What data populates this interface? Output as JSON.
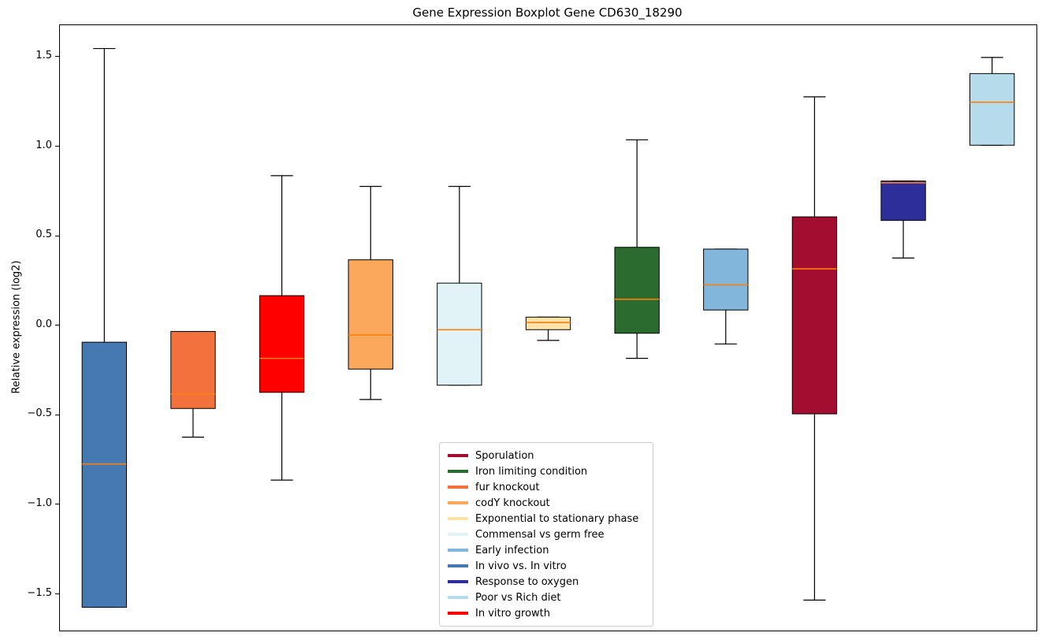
{
  "chart_data": {
    "type": "boxplot",
    "title": "Gene Expression Boxplot Gene CD630_18290",
    "ylabel": "Relative expression (log2)",
    "ylim": [
      -1.7,
      1.68
    ],
    "yticks": [
      {
        "value": 1.5,
        "label": "1.5"
      },
      {
        "value": 1.0,
        "label": "1.0"
      },
      {
        "value": 0.5,
        "label": "0.5"
      },
      {
        "value": 0.0,
        "label": "0.0"
      },
      {
        "value": -0.5,
        "label": "−0.5"
      },
      {
        "value": -1.0,
        "label": "−1.0"
      },
      {
        "value": -1.5,
        "label": "−1.5"
      }
    ],
    "median_color": "#ff7f0e",
    "box_edge_color": "#000000",
    "whisker_color": "#000000",
    "series": [
      {
        "name": "In vivo vs. In vitro",
        "color": "#4679B2",
        "low": -1.57,
        "q1": -1.57,
        "median": -0.77,
        "q3": -0.09,
        "high": 1.55
      },
      {
        "name": "fur knockout",
        "color": "#F2713C",
        "low": -0.62,
        "q1": -0.46,
        "median": -0.38,
        "q3": -0.03,
        "high": -0.03
      },
      {
        "name": "In vitro growth",
        "color": "#FF0000",
        "low": -0.86,
        "q1": -0.37,
        "median": -0.18,
        "q3": 0.17,
        "high": 0.84
      },
      {
        "name": "codY knockout",
        "color": "#FBA85C",
        "low": -0.41,
        "q1": -0.24,
        "median": -0.05,
        "q3": 0.37,
        "high": 0.78
      },
      {
        "name": "Commensal vs germ free",
        "color": "#E2F3F8",
        "low": -0.33,
        "q1": -0.33,
        "median": -0.02,
        "q3": 0.24,
        "high": 0.78
      },
      {
        "name": "Exponential to stationary phase",
        "color": "#FFE3A9",
        "low": -0.08,
        "q1": -0.02,
        "median": 0.02,
        "q3": 0.05,
        "high": 0.05
      },
      {
        "name": "Iron limiting condition",
        "color": "#2C6B2F",
        "low": -0.18,
        "q1": -0.04,
        "median": 0.15,
        "q3": 0.44,
        "high": 1.04
      },
      {
        "name": "Early infection",
        "color": "#82B6DB",
        "low": -0.1,
        "q1": 0.09,
        "median": 0.23,
        "q3": 0.43,
        "high": 0.43
      },
      {
        "name": "Sporulation",
        "color": "#A30D2F",
        "low": -1.53,
        "q1": -0.49,
        "median": 0.32,
        "q3": 0.61,
        "high": 1.28
      },
      {
        "name": "Response to oxygen",
        "color": "#2D2E9A",
        "low": 0.38,
        "q1": 0.59,
        "median": 0.8,
        "q3": 0.81,
        "high": 0.81
      },
      {
        "name": "Poor vs Rich diet",
        "color": "#B6DCEB",
        "low": 1.01,
        "q1": 1.01,
        "median": 1.25,
        "q3": 1.41,
        "high": 1.5
      }
    ],
    "legend": {
      "items": [
        {
          "label": "Sporulation",
          "color": "#A30D2F"
        },
        {
          "label": "Iron limiting condition",
          "color": "#2C6B2F"
        },
        {
          "label": "fur knockout",
          "color": "#F2713C"
        },
        {
          "label": "codY knockout",
          "color": "#FBA85C"
        },
        {
          "label": "Exponential to stationary phase",
          "color": "#FFE3A9"
        },
        {
          "label": "Commensal vs germ free",
          "color": "#E2F3F8"
        },
        {
          "label": "Early infection",
          "color": "#82B6DB"
        },
        {
          "label": "In vivo vs. In vitro",
          "color": "#4679B2"
        },
        {
          "label": "Response to oxygen",
          "color": "#2D2E9A"
        },
        {
          "label": "Poor vs Rich diet",
          "color": "#B6DCEB"
        },
        {
          "label": "In vitro growth",
          "color": "#FF0000"
        }
      ]
    }
  }
}
